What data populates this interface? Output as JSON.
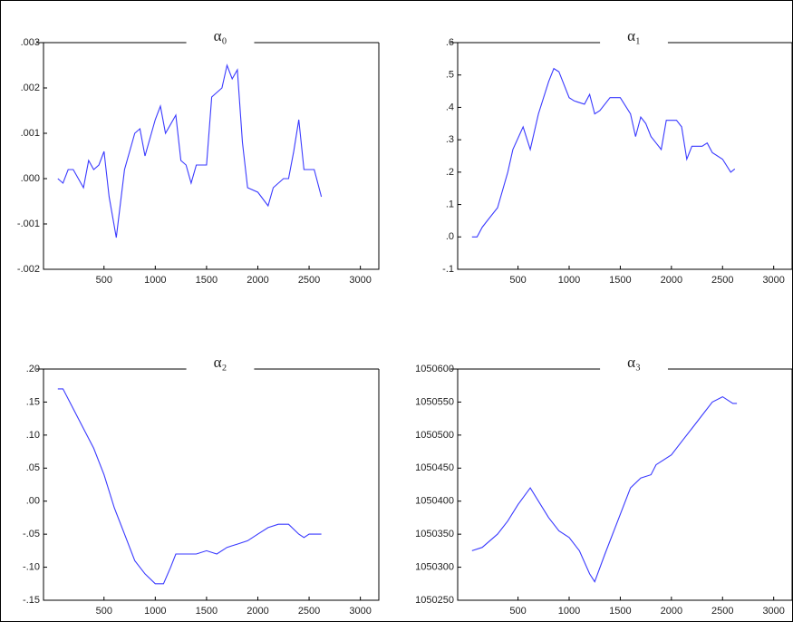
{
  "chart_data": [
    {
      "type": "line",
      "title": "α₀",
      "color": "#3a3aff",
      "x": [
        50,
        100,
        150,
        200,
        300,
        350,
        400,
        450,
        500,
        550,
        620,
        700,
        800,
        850,
        900,
        1000,
        1050,
        1100,
        1200,
        1250,
        1300,
        1350,
        1400,
        1500,
        1550,
        1650,
        1700,
        1750,
        1800,
        1850,
        1900,
        2000,
        2100,
        2150,
        2250,
        2300,
        2350,
        2400,
        2450,
        2500,
        2550,
        2620
      ],
      "values": [
        0.0,
        -0.0001,
        0.0002,
        0.0002,
        -0.0002,
        0.0004,
        0.0002,
        0.0003,
        0.0006,
        -0.0004,
        -0.0013,
        0.0002,
        0.001,
        0.0011,
        0.0005,
        0.0013,
        0.0016,
        0.001,
        0.0014,
        0.0004,
        0.0003,
        -0.0001,
        0.0003,
        0.0003,
        0.0018,
        0.002,
        0.0025,
        0.0022,
        0.0024,
        0.0008,
        -0.0002,
        -0.0003,
        -0.0006,
        -0.0002,
        0.0,
        0.0,
        0.0006,
        0.0013,
        0.0002,
        0.0002,
        0.0002,
        -0.0004
      ],
      "xlim": [
        -90,
        3180
      ],
      "xticks": [
        500,
        1000,
        1500,
        2000,
        2500,
        3000
      ],
      "ylim": [
        -0.002,
        0.003
      ],
      "yticks": [
        {
          "value": 0.003,
          "label": ".003"
        },
        {
          "value": 0.002,
          "label": ".002"
        },
        {
          "value": 0.001,
          "label": ".001"
        },
        {
          "value": 0,
          "label": ".000"
        },
        {
          "value": -0.001,
          "label": "-.001"
        },
        {
          "value": -0.002,
          "label": "-.002"
        }
      ]
    },
    {
      "type": "line",
      "title": "α₁",
      "color": "#3a3aff",
      "x": [
        50,
        100,
        150,
        200,
        300,
        400,
        450,
        550,
        620,
        700,
        800,
        850,
        900,
        1000,
        1050,
        1150,
        1200,
        1250,
        1300,
        1400,
        1500,
        1600,
        1650,
        1700,
        1750,
        1800,
        1850,
        1900,
        1950,
        2050,
        2100,
        2150,
        2200,
        2300,
        2350,
        2400,
        2500,
        2580,
        2620
      ],
      "values": [
        0.0,
        0.0,
        0.03,
        0.05,
        0.09,
        0.2,
        0.27,
        0.34,
        0.27,
        0.38,
        0.48,
        0.52,
        0.51,
        0.43,
        0.42,
        0.41,
        0.44,
        0.38,
        0.39,
        0.43,
        0.43,
        0.38,
        0.31,
        0.37,
        0.35,
        0.31,
        0.29,
        0.27,
        0.36,
        0.36,
        0.34,
        0.24,
        0.28,
        0.28,
        0.29,
        0.26,
        0.24,
        0.2,
        0.21
      ],
      "xlim": [
        -90,
        3180
      ],
      "xticks": [
        500,
        1000,
        1500,
        2000,
        2500,
        3000
      ],
      "ylim": [
        -0.1,
        0.6
      ],
      "yticks": [
        {
          "value": 0.6,
          "label": ".6"
        },
        {
          "value": 0.5,
          "label": ".5"
        },
        {
          "value": 0.4,
          "label": ".4"
        },
        {
          "value": 0.3,
          "label": ".3"
        },
        {
          "value": 0.2,
          "label": ".2"
        },
        {
          "value": 0.1,
          "label": ".1"
        },
        {
          "value": 0,
          "label": ".0"
        },
        {
          "value": -0.1,
          "label": "-.1"
        }
      ]
    },
    {
      "type": "line",
      "title": "α₂",
      "color": "#3a3aff",
      "x": [
        50,
        100,
        200,
        300,
        400,
        500,
        600,
        700,
        800,
        900,
        1000,
        1080,
        1150,
        1200,
        1300,
        1400,
        1500,
        1600,
        1700,
        1800,
        1900,
        2000,
        2100,
        2200,
        2300,
        2400,
        2450,
        2500,
        2620
      ],
      "values": [
        0.17,
        0.17,
        0.14,
        0.11,
        0.08,
        0.04,
        -0.01,
        -0.05,
        -0.09,
        -0.11,
        -0.125,
        -0.125,
        -0.1,
        -0.08,
        -0.08,
        -0.08,
        -0.075,
        -0.08,
        -0.07,
        -0.065,
        -0.06,
        -0.05,
        -0.04,
        -0.035,
        -0.035,
        -0.05,
        -0.055,
        -0.05,
        -0.05
      ],
      "xlim": [
        -90,
        3180
      ],
      "xticks": [
        500,
        1000,
        1500,
        2000,
        2500,
        3000
      ],
      "ylim": [
        -0.15,
        0.2
      ],
      "yticks": [
        {
          "value": 0.2,
          "label": ".20"
        },
        {
          "value": 0.15,
          "label": ".15"
        },
        {
          "value": 0.1,
          "label": ".10"
        },
        {
          "value": 0.05,
          "label": ".05"
        },
        {
          "value": 0,
          "label": ".00"
        },
        {
          "value": -0.05,
          "label": "-.05"
        },
        {
          "value": -0.1,
          "label": "-.10"
        },
        {
          "value": -0.15,
          "label": "-.15"
        }
      ]
    },
    {
      "type": "line",
      "title": "α₃",
      "color": "#3a3aff",
      "x": [
        50,
        150,
        300,
        400,
        500,
        620,
        700,
        800,
        900,
        1000,
        1100,
        1200,
        1250,
        1350,
        1500,
        1600,
        1700,
        1800,
        1850,
        2000,
        2100,
        2200,
        2300,
        2400,
        2500,
        2600,
        2640
      ],
      "values": [
        1050325,
        1050330,
        1050350,
        1050370,
        1050395,
        1050420,
        1050400,
        1050375,
        1050355,
        1050345,
        1050325,
        1050290,
        1050278,
        1050320,
        1050380,
        1050420,
        1050435,
        1050440,
        1050455,
        1050470,
        1050490,
        1050510,
        1050530,
        1050550,
        1050558,
        1050548,
        1050548
      ],
      "xlim": [
        -90,
        3180
      ],
      "xticks": [
        500,
        1000,
        1500,
        2000,
        2500,
        3000
      ],
      "ylim": [
        1050250,
        1050600
      ],
      "yticks": [
        1050600,
        1050550,
        1050500,
        1050450,
        1050400,
        1050350,
        1050300,
        1050250
      ]
    }
  ]
}
